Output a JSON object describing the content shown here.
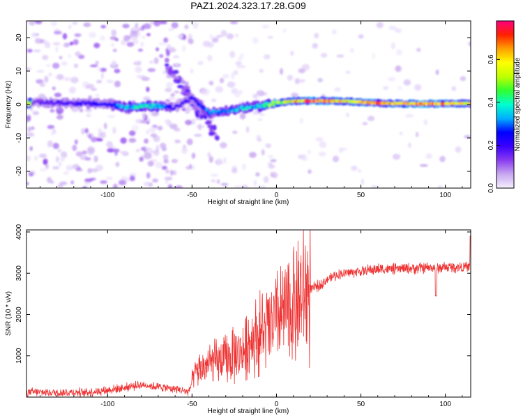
{
  "title": "PAZ1.2024.323.17.28.G09",
  "chart_data": [
    {
      "type": "heatmap",
      "xlabel": "Height of straight line (km)",
      "ylabel": "Frequency (Hz)",
      "xlim": [
        -148,
        115
      ],
      "ylim": [
        -25,
        25
      ],
      "xticks": [
        -100,
        -50,
        0,
        50,
        100
      ],
      "yticks": [
        -20,
        -10,
        0,
        10,
        20
      ],
      "colorbar": {
        "label": "Normalized spectral amplitude",
        "ticks": [
          0.0,
          0.2,
          0.4,
          0.6
        ],
        "range": [
          0.0,
          0.78
        ],
        "colormap": [
          "#f5f0ff",
          "#c8a8f0",
          "#8a3cf0",
          "#3a00ff",
          "#0000ff",
          "#00b0ff",
          "#00ffd0",
          "#30ff30",
          "#c0ff00",
          "#ffff00",
          "#ffa000",
          "#ff2000",
          "#ff0080"
        ]
      },
      "ridge": [
        {
          "x": -145,
          "f": 0.8,
          "a": 0.15
        },
        {
          "x": -130,
          "f": 0.5,
          "a": 0.18
        },
        {
          "x": -115,
          "f": 0.3,
          "a": 0.2
        },
        {
          "x": -100,
          "f": 0.0,
          "a": 0.22
        },
        {
          "x": -90,
          "f": -0.8,
          "a": 0.35
        },
        {
          "x": -80,
          "f": -0.4,
          "a": 0.4
        },
        {
          "x": -70,
          "f": -0.6,
          "a": 0.35
        },
        {
          "x": -60,
          "f": -1.0,
          "a": 0.18
        },
        {
          "x": -50,
          "f": 2.0,
          "a": 0.2
        },
        {
          "x": -40,
          "f": -2.5,
          "a": 0.3
        },
        {
          "x": -30,
          "f": -2.0,
          "a": 0.3
        },
        {
          "x": -20,
          "f": -1.0,
          "a": 0.35
        },
        {
          "x": -10,
          "f": -0.5,
          "a": 0.38
        },
        {
          "x": 0,
          "f": 0.5,
          "a": 0.5
        },
        {
          "x": 10,
          "f": 1.0,
          "a": 0.62
        },
        {
          "x": 25,
          "f": 1.1,
          "a": 0.7
        },
        {
          "x": 40,
          "f": 1.0,
          "a": 0.6
        },
        {
          "x": 55,
          "f": 0.5,
          "a": 0.65
        },
        {
          "x": 70,
          "f": 0.3,
          "a": 0.62
        },
        {
          "x": 85,
          "f": 0.2,
          "a": 0.68
        },
        {
          "x": 100,
          "f": 0.3,
          "a": 0.65
        },
        {
          "x": 115,
          "f": 0.3,
          "a": 0.55
        }
      ]
    },
    {
      "type": "line",
      "xlabel": "Height of straight line (km)",
      "ylabel": "SNR (10 * v/v)",
      "xlim": [
        -148,
        115
      ],
      "ylim": [
        0,
        4050
      ],
      "xticks": [
        -100,
        -50,
        0,
        50,
        100
      ],
      "yticks": [
        1000,
        2000,
        3000,
        4000
      ],
      "color": "#ee3333",
      "series": [
        {
          "x": [
            -148,
            -130,
            -110,
            -100,
            -90,
            -80,
            -70,
            -60,
            -52,
            -48,
            -40,
            -30,
            -20,
            -15,
            -10,
            -5,
            0,
            5,
            10,
            15,
            20,
            25,
            30,
            35,
            40,
            50,
            60,
            70,
            80,
            90,
            95,
            100,
            110,
            115
          ],
          "values": [
            120,
            110,
            120,
            170,
            230,
            300,
            250,
            200,
            130,
            600,
            800,
            900,
            1100,
            1400,
            1500,
            1650,
            1850,
            2050,
            2250,
            2400,
            2600,
            2700,
            2850,
            2950,
            3000,
            3050,
            3100,
            3100,
            3120,
            3130,
            3130,
            3140,
            3150,
            3150
          ]
        }
      ]
    }
  ]
}
